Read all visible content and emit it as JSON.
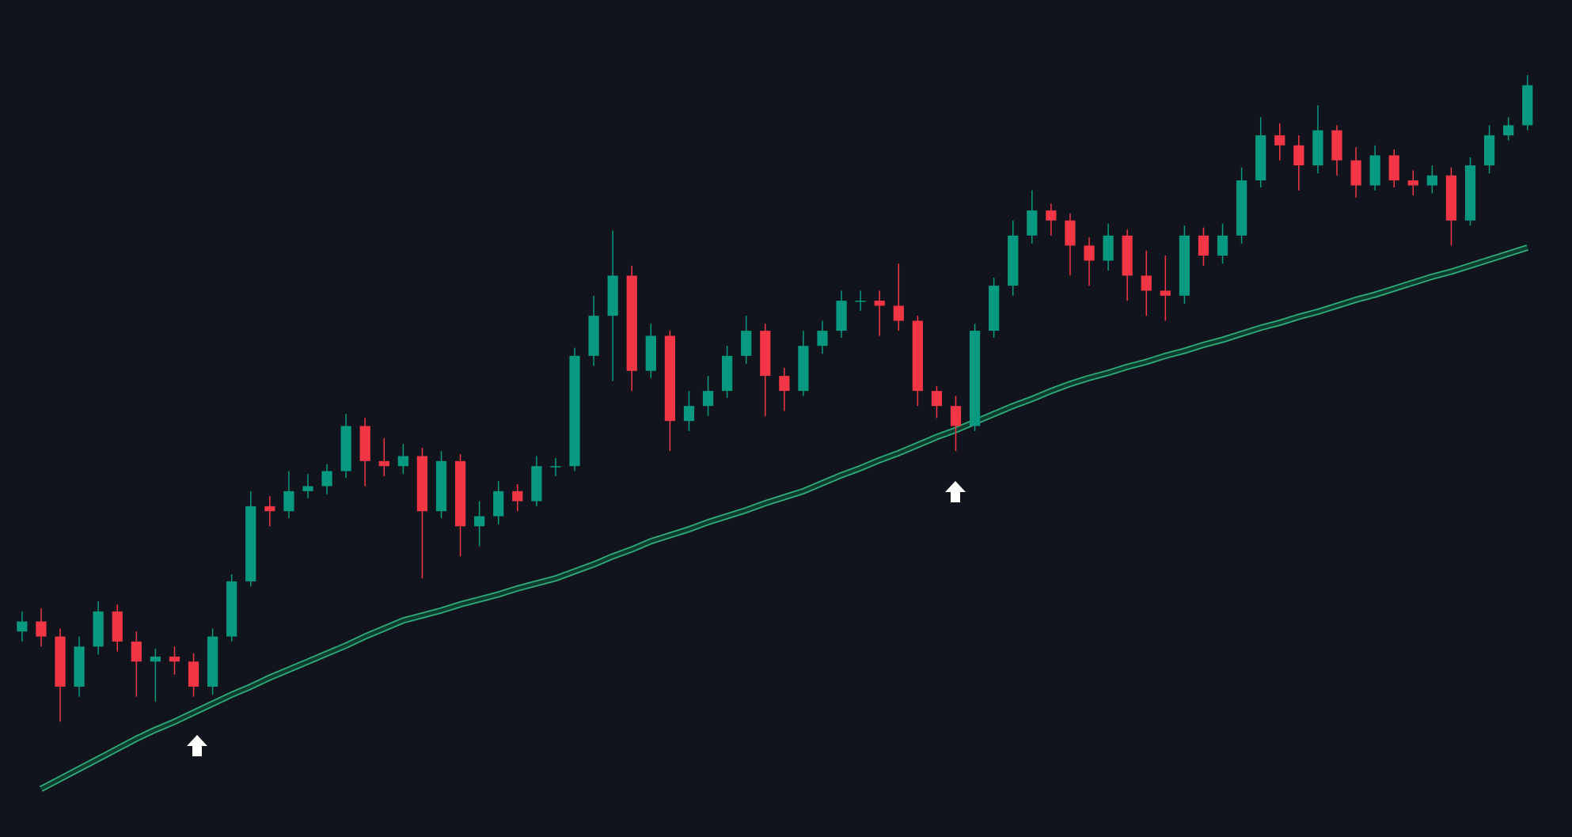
{
  "chart_data": {
    "type": "candlestick",
    "ylim": [
      0,
      835
    ],
    "up_color": "#089981",
    "down_color": "#f23645",
    "ma_color": "#2fae7a",
    "ma_fill": "#0d3d2f",
    "open": [
      205,
      215,
      200,
      150,
      190,
      225,
      195,
      175,
      180,
      175,
      150,
      200,
      255,
      330,
      325,
      345,
      350,
      365,
      410,
      375,
      370,
      380,
      325,
      375,
      310,
      320,
      345,
      335,
      370,
      370,
      480,
      520,
      560,
      465,
      500,
      415,
      430,
      445,
      480,
      505,
      460,
      445,
      490,
      505,
      535,
      535,
      530,
      515,
      445,
      430,
      410,
      505,
      550,
      600,
      625,
      615,
      590,
      575,
      600,
      560,
      545,
      540,
      600,
      580,
      600,
      655,
      700,
      690,
      670,
      705,
      675,
      650,
      680,
      655,
      650,
      660,
      615,
      670,
      700,
      710
    ],
    "high": [
      225,
      228,
      208,
      200,
      235,
      232,
      205,
      188,
      190,
      183,
      208,
      262,
      345,
      340,
      365,
      362,
      372,
      422,
      418,
      398,
      392,
      388,
      385,
      382,
      335,
      355,
      352,
      380,
      378,
      488,
      540,
      605,
      570,
      512,
      505,
      445,
      460,
      490,
      520,
      512,
      468,
      505,
      515,
      545,
      545,
      545,
      572,
      520,
      450,
      440,
      512,
      558,
      615,
      645,
      632,
      622,
      598,
      612,
      606,
      585,
      580,
      610,
      608,
      612,
      668,
      718,
      712,
      700,
      730,
      710,
      688,
      690,
      686,
      665,
      670,
      668,
      678,
      710,
      718,
      760
    ],
    "low": [
      195,
      190,
      115,
      140,
      182,
      185,
      140,
      135,
      162,
      140,
      142,
      195,
      250,
      310,
      318,
      338,
      342,
      358,
      350,
      360,
      362,
      258,
      318,
      280,
      290,
      312,
      325,
      330,
      360,
      365,
      470,
      455,
      445,
      458,
      385,
      405,
      420,
      438,
      472,
      420,
      425,
      440,
      482,
      498,
      525,
      500,
      505,
      430,
      418,
      385,
      405,
      498,
      540,
      592,
      600,
      560,
      550,
      565,
      535,
      520,
      515,
      532,
      570,
      572,
      592,
      648,
      675,
      645,
      662,
      660,
      638,
      645,
      648,
      640,
      642,
      590,
      610,
      662,
      695,
      705
    ],
    "close": [
      215,
      200,
      150,
      190,
      225,
      195,
      175,
      180,
      175,
      150,
      200,
      255,
      330,
      325,
      345,
      350,
      365,
      410,
      375,
      370,
      380,
      325,
      375,
      310,
      320,
      345,
      335,
      370,
      370,
      480,
      520,
      560,
      465,
      500,
      415,
      430,
      445,
      480,
      505,
      460,
      445,
      490,
      505,
      535,
      535,
      530,
      515,
      445,
      430,
      410,
      505,
      550,
      600,
      625,
      615,
      590,
      575,
      600,
      560,
      545,
      540,
      600,
      580,
      600,
      655,
      700,
      690,
      670,
      705,
      675,
      650,
      680,
      655,
      650,
      660,
      615,
      670,
      700,
      710,
      750
    ],
    "ma": [
      null,
      48,
      58,
      68,
      78,
      88,
      98,
      107,
      115,
      124,
      133,
      142,
      150,
      159,
      167,
      175,
      183,
      191,
      200,
      208,
      216,
      221,
      226,
      232,
      237,
      242,
      248,
      253,
      258,
      265,
      272,
      280,
      287,
      295,
      301,
      307,
      314,
      320,
      326,
      333,
      339,
      345,
      353,
      361,
      368,
      376,
      383,
      391,
      399,
      406,
      414,
      422,
      430,
      437,
      445,
      452,
      458,
      463,
      469,
      474,
      480,
      485,
      491,
      496,
      502,
      508,
      513,
      519,
      524,
      530,
      536,
      541,
      547,
      553,
      559,
      564,
      570,
      576,
      582,
      588
    ]
  }
}
